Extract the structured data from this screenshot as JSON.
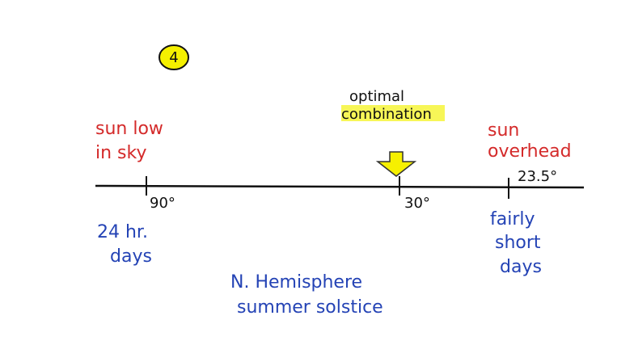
{
  "badge": "4",
  "annotation": {
    "lines": [
      "optimal",
      "combination"
    ]
  },
  "left_label": {
    "lines": [
      "sun low",
      "in sky"
    ]
  },
  "right_label": {
    "lines": [
      "sun",
      "overhead"
    ]
  },
  "ticks": [
    {
      "label": "90°"
    },
    {
      "label": "30°"
    },
    {
      "label": "23.5°"
    }
  ],
  "left_note": {
    "lines": [
      "24 hr.",
      "days"
    ]
  },
  "right_note": {
    "lines": [
      "fairly",
      "short",
      "days"
    ]
  },
  "caption": {
    "lines": [
      "N. Hemisphere",
      "summer solstice"
    ]
  }
}
